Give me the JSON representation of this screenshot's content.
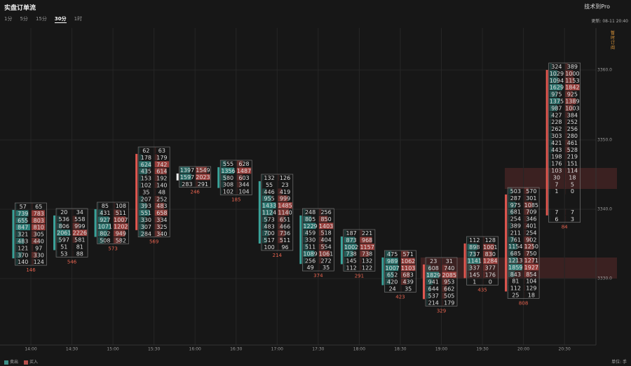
{
  "header": {
    "title": "实盘订单流",
    "pro": "技术到Pro",
    "updated": "更新: 08-11 20:40"
  },
  "tabs": [
    {
      "label": "1分",
      "active": false
    },
    {
      "label": "5分",
      "active": false
    },
    {
      "label": "15分",
      "active": false
    },
    {
      "label": "30分",
      "active": true
    },
    {
      "label": "1时",
      "active": false
    }
  ],
  "side_note": "暂时订阅",
  "price_labels": [
    "3360.0",
    "3350.0",
    "3340.0",
    "3330.0"
  ],
  "time_labels": [
    "14:00",
    "14:30",
    "15:00",
    "15:30",
    "16:00",
    "16:30",
    "17:00",
    "17:30",
    "18:00",
    "18:30",
    "19:00",
    "19:30",
    "20:00",
    "20:30"
  ],
  "clusters": [
    {
      "rows": [
        [
          57,
          65
        ],
        [
          739,
          783
        ],
        [
          655,
          803
        ],
        [
          847,
          810
        ],
        [
          321,
          305
        ],
        [
          483,
          440
        ],
        [
          121,
          97
        ],
        [
          370,
          330
        ],
        [
          140,
          124
        ]
      ],
      "delta": 146
    },
    {
      "rows": [
        [
          20,
          34
        ],
        [
          536,
          558
        ],
        [
          806,
          999
        ],
        [
          2061,
          2226
        ],
        [
          597,
          581
        ],
        [
          51,
          81
        ],
        [
          53,
          88
        ]
      ],
      "delta": 546
    },
    {
      "rows": [
        [
          85,
          108
        ],
        [
          431,
          511
        ],
        [
          927,
          1007
        ],
        [
          1071,
          1202
        ],
        [
          802,
          949
        ],
        [
          508,
          582
        ]
      ],
      "delta": 573
    },
    {
      "rows": [
        [
          62,
          63
        ],
        [
          178,
          179
        ],
        [
          624,
          742
        ],
        [
          435,
          614
        ],
        [
          153,
          192
        ],
        [
          102,
          140
        ],
        [
          35,
          48
        ],
        [
          207,
          252
        ],
        [
          393,
          483
        ],
        [
          551,
          658
        ],
        [
          330,
          334
        ],
        [
          307,
          325
        ],
        [
          284,
          340
        ]
      ],
      "delta": 569
    },
    {
      "rows": [
        [
          1397,
          1549
        ],
        [
          1597,
          2023
        ],
        [
          283,
          291
        ]
      ],
      "delta": 246
    },
    {
      "rows": [
        [
          555,
          628
        ],
        [
          1356,
          1487
        ],
        [
          580,
          603
        ],
        [
          308,
          344
        ],
        [
          102,
          104
        ]
      ],
      "delta": 185
    },
    {
      "rows": [
        [
          132,
          126
        ],
        [
          55,
          23
        ],
        [
          446,
          419
        ],
        [
          955,
          999
        ],
        [
          1433,
          1485
        ],
        [
          1124,
          1140
        ],
        [
          573,
          651
        ],
        [
          483,
          466
        ],
        [
          700,
          736
        ],
        [
          517,
          511
        ],
        [
          100,
          96
        ]
      ],
      "delta": 214
    },
    {
      "rows": [
        [
          248,
          256
        ],
        [
          805,
          850
        ],
        [
          1229,
          1403
        ],
        [
          459,
          518
        ],
        [
          330,
          404
        ],
        [
          511,
          554
        ],
        [
          1089,
          1061
        ],
        [
          256,
          272
        ],
        [
          49,
          35
        ]
      ],
      "delta": 374
    },
    {
      "rows": [
        [
          187,
          221
        ],
        [
          873,
          968
        ],
        [
          1002,
          1157
        ],
        [
          738,
          738
        ],
        [
          145,
          132
        ],
        [
          112,
          122
        ]
      ],
      "delta": 291
    },
    {
      "rows": [
        [
          475,
          571
        ],
        [
          989,
          1062
        ],
        [
          1007,
          1103
        ],
        [
          652,
          683
        ],
        [
          420,
          439
        ],
        [
          24,
          35
        ]
      ],
      "delta": 423
    },
    {
      "rows": [
        [
          23,
          31
        ],
        [
          608,
          740
        ],
        [
          1829,
          2085
        ],
        [
          941,
          953
        ],
        [
          644,
          662
        ],
        [
          537,
          505
        ],
        [
          214,
          179
        ]
      ],
      "delta": 329
    },
    {
      "rows": [
        [
          112,
          128
        ],
        [
          898,
          1001
        ],
        [
          737,
          830
        ],
        [
          1141,
          1284
        ],
        [
          337,
          377
        ],
        [
          145,
          176
        ],
        [
          1,
          0
        ]
      ],
      "delta": 435
    },
    {
      "rows": [
        [
          503,
          570
        ],
        [
          287,
          301
        ],
        [
          975,
          1085
        ],
        [
          681,
          709
        ],
        [
          254,
          346
        ],
        [
          389,
          401
        ],
        [
          211,
          254
        ],
        [
          761,
          902
        ],
        [
          1154,
          1250
        ],
        [
          685,
          750
        ],
        [
          1213,
          1271
        ],
        [
          1859,
          1927
        ],
        [
          843,
          854
        ],
        [
          81,
          104
        ],
        [
          112,
          129
        ],
        [
          25,
          18
        ]
      ],
      "delta": 808
    },
    {
      "rows": [
        [
          324,
          389
        ],
        [
          1029,
          1000
        ],
        [
          1094,
          1153
        ],
        [
          1629,
          1842
        ],
        [
          975,
          925
        ],
        [
          1375,
          1389
        ],
        [
          987,
          1003
        ],
        [
          427,
          384
        ],
        [
          228,
          252
        ],
        [
          262,
          256
        ],
        [
          303,
          280
        ],
        [
          421,
          461
        ],
        [
          443,
          528
        ],
        [
          198,
          219
        ],
        [
          176,
          151
        ],
        [
          103,
          114
        ],
        [
          30,
          18
        ],
        [
          7,
          5
        ],
        [
          1,
          0
        ],
        [
          null,
          null
        ],
        [
          null,
          null
        ],
        [
          7,
          7
        ],
        [
          6,
          3
        ]
      ],
      "delta": 84
    }
  ],
  "legend": {
    "sell": "卖出",
    "buy": "买入"
  },
  "unit": "单位: 手"
}
